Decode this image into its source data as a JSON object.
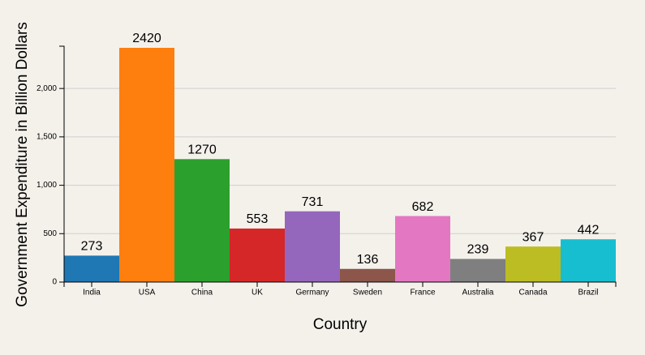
{
  "chart_data": {
    "type": "bar",
    "x_label": "Country",
    "y_label": "Government Expenditure in Billion Dollars",
    "categories": [
      "India",
      "USA",
      "China",
      "UK",
      "Germany",
      "Sweden",
      "France",
      "Australia",
      "Canada",
      "Brazil"
    ],
    "values": [
      273,
      2420,
      1270,
      553,
      731,
      136,
      682,
      239,
      367,
      442
    ],
    "colors": [
      "#1f77b4",
      "#ff7f0e",
      "#2ca02c",
      "#d62728",
      "#9467bd",
      "#8c564b",
      "#e377c2",
      "#7f7f7f",
      "#bcbd22",
      "#17becf"
    ],
    "ylim": [
      0,
      2420
    ],
    "yticks": [
      0,
      500,
      {
        "value": 1000,
        "label": "1,000"
      },
      {
        "value": 1500,
        "label": "1,500"
      },
      {
        "value": 2000,
        "label": "2,000"
      }
    ],
    "grid": true
  }
}
